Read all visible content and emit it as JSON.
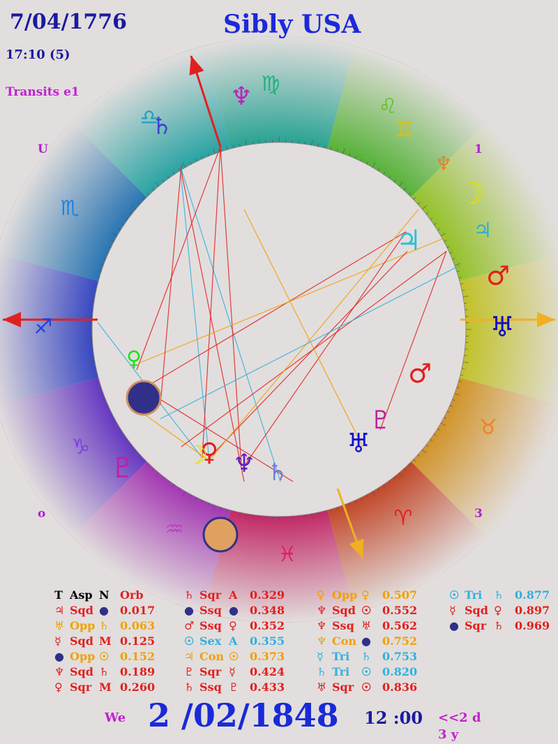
{
  "header": {
    "date": "7/04/1776",
    "title": "Sibly USA",
    "time": "17:10 (5)",
    "transits": "Transits e1"
  },
  "house_labels": {
    "h12": "U",
    "h1": "1",
    "h7": "o",
    "h3": "3"
  },
  "zodiac_signs": [
    {
      "glyph": "♍",
      "color": "#20b080"
    },
    {
      "glyph": "♌",
      "color": "#60c020"
    },
    {
      "glyph": "♊",
      "color": "#e0c000"
    },
    {
      "glyph": "♉",
      "color": "#f08020"
    },
    {
      "glyph": "♈",
      "color": "#e02020"
    },
    {
      "glyph": "♓",
      "color": "#e02060"
    },
    {
      "glyph": "♒",
      "color": "#c040c0"
    },
    {
      "glyph": "♑",
      "color": "#8040e0"
    },
    {
      "glyph": "♐",
      "color": "#2040e0"
    },
    {
      "glyph": "♏",
      "color": "#2080e0"
    },
    {
      "glyph": "♎",
      "color": "#20a0c0"
    }
  ],
  "aspects": {
    "headers": [
      "T",
      "Asp",
      "N",
      "Orb"
    ],
    "columns": [
      [
        {
          "t": "♃",
          "t_color": "#e02020",
          "asp": "Sqd",
          "asp_color": "#e02020",
          "n": "●",
          "n_color": "#303088",
          "orb": "0.017",
          "orb_color": "#e02020"
        },
        {
          "t": "♅",
          "t_color": "#f0a000",
          "asp": "Opp",
          "asp_color": "#f0a000",
          "n": "♄",
          "n_color": "#f0a000",
          "orb": "0.063",
          "orb_color": "#f0a000"
        },
        {
          "t": "☿",
          "t_color": "#e02020",
          "asp": "Sqd",
          "asp_color": "#e02020",
          "n": "M",
          "n_color": "#e02020",
          "orb": "0.125",
          "orb_color": "#e02020"
        },
        {
          "t": "●",
          "t_color": "#303088",
          "asp": "Opp",
          "asp_color": "#f0a000",
          "n": "☉",
          "n_color": "#f0a000",
          "orb": "0.152",
          "orb_color": "#f0a000"
        },
        {
          "t": "♆",
          "t_color": "#e02020",
          "asp": "Sqd",
          "asp_color": "#e02020",
          "n": "♄",
          "n_color": "#e02020",
          "orb": "0.189",
          "orb_color": "#e02020"
        },
        {
          "t": "♀",
          "t_color": "#e02020",
          "asp": "Sqr",
          "asp_color": "#e02020",
          "n": "M",
          "n_color": "#e02020",
          "orb": "0.260",
          "orb_color": "#e02020"
        }
      ],
      [
        {
          "t": "♄",
          "t_color": "#e02020",
          "asp": "Sqr",
          "asp_color": "#e02020",
          "n": "A",
          "n_color": "#e02020",
          "orb": "0.329",
          "orb_color": "#e02020"
        },
        {
          "t": "●",
          "t_color": "#303088",
          "asp": "Ssq",
          "asp_color": "#e02020",
          "n": "●",
          "n_color": "#303088",
          "orb": "0.348",
          "orb_color": "#e02020"
        },
        {
          "t": "♂",
          "t_color": "#e02020",
          "asp": "Ssq",
          "asp_color": "#e02020",
          "n": "♀",
          "n_color": "#e02020",
          "orb": "0.352",
          "orb_color": "#e02020"
        },
        {
          "t": "☉",
          "t_color": "#30b0e0",
          "asp": "Sex",
          "asp_color": "#30b0e0",
          "n": "A",
          "n_color": "#30b0e0",
          "orb": "0.355",
          "orb_color": "#30b0e0"
        },
        {
          "t": "♃",
          "t_color": "#f0a000",
          "asp": "Con",
          "asp_color": "#f0a000",
          "n": "☉",
          "n_color": "#f0a000",
          "orb": "0.373",
          "orb_color": "#f0a000"
        },
        {
          "t": "♇",
          "t_color": "#e02020",
          "asp": "Sqr",
          "asp_color": "#e02020",
          "n": "☿",
          "n_color": "#e02020",
          "orb": "0.424",
          "orb_color": "#e02020"
        },
        {
          "t": "♄",
          "t_color": "#e02020",
          "asp": "Ssq",
          "asp_color": "#e02020",
          "n": "♇",
          "n_color": "#e02020",
          "orb": "0.433",
          "orb_color": "#e02020"
        }
      ],
      [
        {
          "t": "♀",
          "t_color": "#f0a000",
          "asp": "Opp",
          "asp_color": "#f0a000",
          "n": "♀",
          "n_color": "#f0a000",
          "orb": "0.507",
          "orb_color": "#f0a000"
        },
        {
          "t": "♆",
          "t_color": "#e02020",
          "asp": "Sqd",
          "asp_color": "#e02020",
          "n": "☉",
          "n_color": "#e02020",
          "orb": "0.552",
          "orb_color": "#e02020"
        },
        {
          "t": "♆",
          "t_color": "#e02020",
          "asp": "Ssq",
          "asp_color": "#e02020",
          "n": "♅",
          "n_color": "#e02020",
          "orb": "0.562",
          "orb_color": "#e02020"
        },
        {
          "t": "♆",
          "t_color": "#f0a000",
          "asp": "Con",
          "asp_color": "#f0a000",
          "n": "●",
          "n_color": "#303088",
          "orb": "0.752",
          "orb_color": "#f0a000"
        },
        {
          "t": "☿",
          "t_color": "#30b0e0",
          "asp": "Tri",
          "asp_color": "#30b0e0",
          "n": "♄",
          "n_color": "#30b0e0",
          "orb": "0.753",
          "orb_color": "#30b0e0"
        },
        {
          "t": "♄",
          "t_color": "#30b0e0",
          "asp": "Tri",
          "asp_color": "#30b0e0",
          "n": "☉",
          "n_color": "#30b0e0",
          "orb": "0.820",
          "orb_color": "#30b0e0"
        },
        {
          "t": "♅",
          "t_color": "#e02020",
          "asp": "Sqr",
          "asp_color": "#e02020",
          "n": "☉",
          "n_color": "#e02020",
          "orb": "0.836",
          "orb_color": "#e02020"
        }
      ],
      [
        {
          "t": "☉",
          "t_color": "#30b0e0",
          "asp": "Tri",
          "asp_color": "#30b0e0",
          "n": "♄",
          "n_color": "#30b0e0",
          "orb": "0.877",
          "orb_color": "#30b0e0"
        },
        {
          "t": "☿",
          "t_color": "#e02020",
          "asp": "Sqd",
          "asp_color": "#e02020",
          "n": "♀",
          "n_color": "#e02020",
          "orb": "0.897",
          "orb_color": "#e02020"
        },
        {
          "t": "●",
          "t_color": "#303088",
          "asp": "Sqr",
          "asp_color": "#e02020",
          "n": "♄",
          "n_color": "#e02020",
          "orb": "0.969",
          "orb_color": "#e02020"
        }
      ]
    ]
  },
  "footer": {
    "weekday": "We",
    "date": "2 /02/1848",
    "time": "12 :00",
    "step": "<<2 d",
    "step_unit": "3 y"
  },
  "colors": {
    "title": "#1c2ad8",
    "label": "#b020d0",
    "aspect_square": "#e02020",
    "aspect_opposition": "#f0a000",
    "aspect_trine": "#30b0e0"
  }
}
